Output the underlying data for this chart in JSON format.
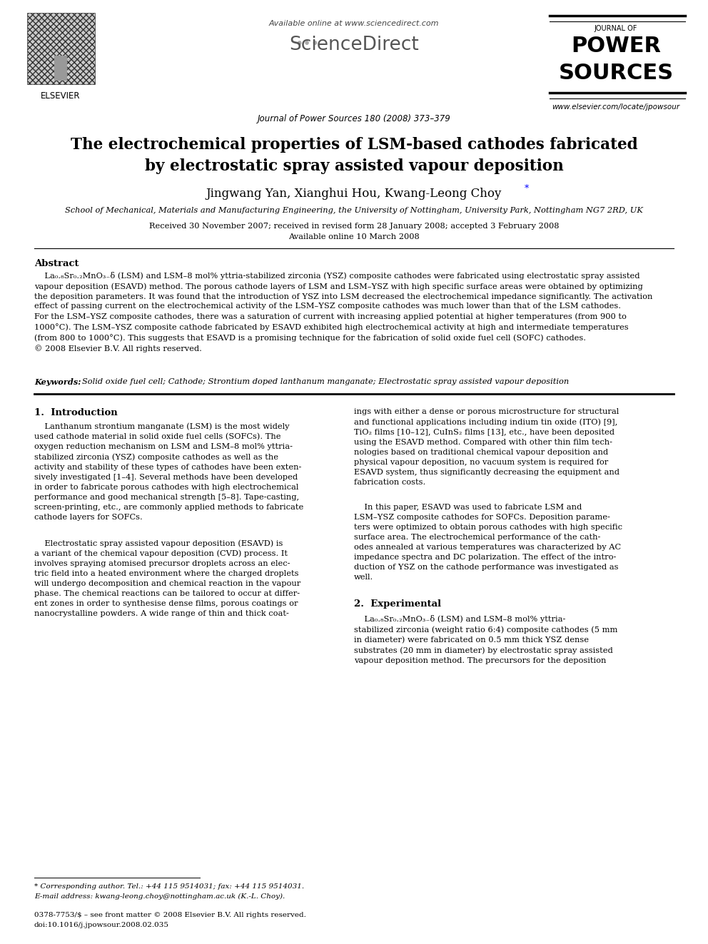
{
  "bg_color": "#ffffff",
  "header_available_text": "Available online at www.sciencedirect.com",
  "journal_info": "Journal of Power Sources 180 (2008) 373–379",
  "journal_url": "www.elsevier.com/locate/jpowsour",
  "elsevier_label": "ELSEVIER",
  "journal_name_top": "JOURNAL OF",
  "journal_name_bold1": "POWER",
  "journal_name_bold2": "SOURCES",
  "title_line1": "The electrochemical properties of LSM-based cathodes fabricated",
  "title_line2": "by electrostatic spray assisted vapour deposition",
  "authors": "Jingwang Yan, Xianghui Hou, Kwang-Leong Choy",
  "affiliation": "School of Mechanical, Materials and Manufacturing Engineering, the University of Nottingham, University Park, Nottingham NG7 2RD, UK",
  "received_line1": "Received 30 November 2007; received in revised form 28 January 2008; accepted 3 February 2008",
  "received_line2": "Available online 10 March 2008",
  "abstract_title": "Abstract",
  "keywords_label": "Keywords:",
  "keywords_text": "Solid oxide fuel cell; Cathode; Strontium doped lanthanum manganate; Electrostatic spray assisted vapour deposition",
  "section1_title": "1.  Introduction",
  "section2_title": "2.  Experimental",
  "footnote_star_line": "* Corresponding author. Tel.: +44 115 9514031; fax: +44 115 9514031.",
  "footnote_email_line": "E-mail address: kwang-leong.choy@nottingham.ac.uk (K.-L. Choy).",
  "footnote_issn": "0378-7753/$ – see front matter © 2008 Elsevier B.V. All rights reserved.",
  "footnote_doi": "doi:10.1016/j.jpowsour.2008.02.035"
}
